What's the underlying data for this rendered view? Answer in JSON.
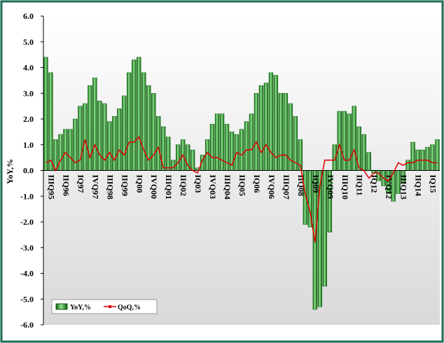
{
  "chart_data": {
    "type": "bar_line",
    "y_axis_label": "YoY,%",
    "categories": [
      "IIIQ95",
      null,
      null,
      "IIQ96",
      null,
      null,
      "IQ97",
      null,
      null,
      "IVQ97",
      null,
      null,
      "IIIQ98",
      null,
      null,
      "IIQ99",
      null,
      null,
      "IQ00",
      null,
      null,
      "IVQ00",
      null,
      null,
      "IIIQ01",
      null,
      null,
      "IIQ02",
      null,
      null,
      "IQ03",
      null,
      null,
      "IVQ03",
      null,
      null,
      "IIIQ04",
      null,
      null,
      "IIQ05",
      null,
      null,
      "IQ06",
      null,
      null,
      "IVQ06",
      null,
      null,
      "IIIQ07",
      null,
      null,
      "IIQ08",
      null,
      null,
      "IQ09",
      null,
      null,
      "IVQ09",
      null,
      null,
      "IIIQ10",
      null,
      null,
      "IIQ11",
      null,
      null,
      "IQ12",
      null,
      null,
      "IVQ12",
      null,
      null,
      "IIIQ13",
      null,
      null,
      "IIQ14",
      null,
      null,
      "IQ15",
      null,
      null
    ],
    "series": [
      {
        "name": "YoY,%",
        "kind": "bar",
        "color": "#1f8a1f",
        "values": [
          4.4,
          3.8,
          1.2,
          1.4,
          1.6,
          1.6,
          2.0,
          2.5,
          2.6,
          3.3,
          3.6,
          2.7,
          2.6,
          1.9,
          2.1,
          2.4,
          2.9,
          3.8,
          4.3,
          4.4,
          3.8,
          3.3,
          3.0,
          2.1,
          1.7,
          1.3,
          0.4,
          1.0,
          1.2,
          1.0,
          0.8,
          0.1,
          0.6,
          1.2,
          1.8,
          2.2,
          2.2,
          1.8,
          1.5,
          1.4,
          1.6,
          1.9,
          2.2,
          3.0,
          3.3,
          3.4,
          3.8,
          3.7,
          3.0,
          3.0,
          2.6,
          2.1,
          1.2,
          -2.1,
          -2.2,
          -5.4,
          -5.3,
          -4.5,
          -2.4,
          1.0,
          2.3,
          2.3,
          2.2,
          2.5,
          1.7,
          1.4,
          0.7,
          -0.1,
          -0.4,
          -0.6,
          -0.9,
          -1.2,
          -0.9,
          -0.5,
          0.4,
          1.1,
          0.8,
          0.8,
          0.9,
          1.0,
          1.2
        ]
      },
      {
        "name": "QoQ,%",
        "kind": "line",
        "color": "#e00000",
        "values": [
          0.3,
          0.4,
          0,
          0.4,
          0.7,
          0.5,
          0.3,
          0.4,
          1.2,
          0.5,
          1.0,
          0.6,
          0.4,
          0.7,
          0.4,
          0.8,
          0.6,
          1.1,
          1.1,
          1.3,
          0.8,
          0.4,
          0.6,
          0.9,
          0.1,
          0.1,
          0.1,
          0.3,
          0.6,
          0.2,
          0,
          -0.1,
          0.4,
          0.7,
          0.5,
          0.5,
          0.4,
          0.3,
          0.2,
          0.7,
          0.6,
          0.8,
          0.8,
          1.1,
          0.7,
          1.0,
          0.7,
          0.5,
          0.6,
          0.6,
          0.4,
          0.3,
          0.2,
          -0.9,
          -1.6,
          -2.8,
          -0.6,
          0.4,
          0.4,
          0.4,
          1.0,
          0.4,
          0.4,
          0.8,
          0.1,
          0,
          -0.3,
          -0.1,
          -0.1,
          -0.3,
          -0.4,
          -0.1,
          0.3,
          0.2,
          0.3,
          0.3,
          0.4,
          0.4,
          0.4,
          0.3,
          0.3
        ]
      }
    ],
    "ylim": [
      -6,
      6
    ],
    "yticks": [
      {
        "value": -6,
        "label": "-6.0"
      },
      {
        "value": -5,
        "label": "-5.0"
      },
      {
        "value": -4,
        "label": "-4.0"
      },
      {
        "value": -3,
        "label": "-3.0"
      },
      {
        "value": -2,
        "label": "-2.0"
      },
      {
        "value": -1,
        "label": "-1.0"
      },
      {
        "value": 0,
        "label": "0.0"
      },
      {
        "value": 1,
        "label": "1.0"
      },
      {
        "value": 2,
        "label": "2.0"
      },
      {
        "value": 3,
        "label": "3.0"
      },
      {
        "value": 4,
        "label": "4.0"
      },
      {
        "value": 5,
        "label": "5.0"
      },
      {
        "value": 6,
        "label": "6.0"
      }
    ],
    "legend": "bottom-left"
  }
}
